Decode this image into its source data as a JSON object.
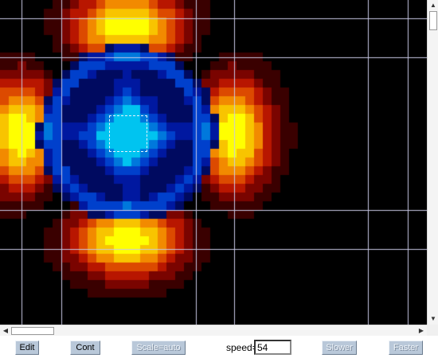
{
  "visualization": {
    "colormap": [
      "#000000",
      "#3a0000",
      "#7a0400",
      "#b81600",
      "#dc4a00",
      "#f28a00",
      "#f8c400",
      "#ffff00"
    ],
    "interior_colormap": [
      "#000000",
      "#00002a",
      "#000a60",
      "#0018a0",
      "#0040cc",
      "#0078dc",
      "#00c4f0"
    ],
    "grid_color": "#c8c8e6"
  },
  "controls": {
    "edit_label": "Edit",
    "cont_label": "Cont",
    "scale_label": "Scale=auto",
    "speed_label": "speed=",
    "speed_value": "54",
    "slower_label": "Slower",
    "faster_label": "Faster"
  }
}
